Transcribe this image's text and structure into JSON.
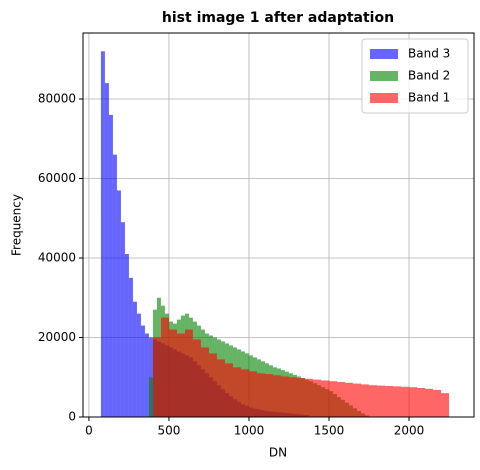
{
  "chart_data": {
    "type": "histogram",
    "title": "hist image 1 after adaptation",
    "x_label": "DN",
    "y_label": "Frequency",
    "xlim": [
      -37,
      2406
    ],
    "ylim": [
      0,
      96600
    ],
    "xticks": [
      0,
      500,
      1000,
      1500,
      2000
    ],
    "yticks": [
      0,
      20000,
      40000,
      60000,
      80000
    ],
    "grid": true,
    "legend": "upper right",
    "alpha": 0.6,
    "series": [
      {
        "name": "Band 3",
        "color": "blue",
        "bins": [
          75,
          100,
          125,
          150,
          175,
          200,
          225,
          250,
          275,
          300,
          325,
          350,
          375,
          400,
          425,
          450,
          475,
          500,
          525,
          550,
          575,
          600,
          625,
          650,
          675,
          700,
          725,
          750,
          775,
          800,
          825,
          850,
          875,
          900,
          925,
          950,
          975,
          1000,
          1025,
          1050,
          1075,
          1100,
          1125,
          1150,
          1175,
          1200,
          1225,
          1250,
          1275,
          1300,
          1325,
          1350,
          1375
        ],
        "values": [
          92000,
          84000,
          76000,
          66000,
          57000,
          49000,
          41000,
          35000,
          29000,
          26000,
          23000,
          21000,
          20000,
          19500,
          19000,
          18500,
          18000,
          17500,
          17000,
          16500,
          16000,
          15500,
          15000,
          14000,
          13000,
          12000,
          11000,
          10000,
          9000,
          8000,
          7000,
          6000,
          5200,
          4500,
          3800,
          3200,
          2800,
          2400,
          2100,
          1900,
          1700,
          1500,
          1400,
          1300,
          1200,
          1100,
          1000,
          900,
          800,
          700,
          600,
          500
        ]
      },
      {
        "name": "Band 2",
        "color": "green",
        "bins": [
          375,
          400,
          425,
          450,
          475,
          500,
          525,
          550,
          575,
          600,
          625,
          650,
          675,
          700,
          725,
          750,
          775,
          800,
          825,
          850,
          875,
          900,
          925,
          950,
          975,
          1000,
          1025,
          1050,
          1075,
          1100,
          1125,
          1150,
          1175,
          1200,
          1225,
          1250,
          1275,
          1300,
          1325,
          1350,
          1375,
          1400,
          1425,
          1450,
          1475,
          1500,
          1525,
          1550,
          1575,
          1600,
          1625,
          1650,
          1675,
          1700,
          1725,
          1750
        ],
        "values": [
          10000,
          27000,
          30000,
          28000,
          26000,
          24000,
          23500,
          24500,
          25500,
          26000,
          25000,
          24000,
          23000,
          22000,
          21000,
          20500,
          20000,
          19500,
          19000,
          18500,
          18000,
          17500,
          17000,
          16500,
          16000,
          15500,
          15000,
          14500,
          14000,
          13500,
          13000,
          12500,
          12200,
          11800,
          11400,
          11000,
          10600,
          10200,
          9800,
          9400,
          9000,
          8500,
          8000,
          7500,
          7000,
          6500,
          5800,
          5000,
          4300,
          3600,
          2900,
          2200,
          1500,
          900,
          400
        ]
      },
      {
        "name": "Band 1",
        "color": "red",
        "bins": [
          400,
          450,
          500,
          550,
          600,
          650,
          700,
          750,
          800,
          850,
          900,
          950,
          1000,
          1050,
          1100,
          1150,
          1200,
          1250,
          1300,
          1350,
          1400,
          1450,
          1500,
          1550,
          1600,
          1650,
          1700,
          1750,
          1800,
          1850,
          1900,
          1950,
          2000,
          2050,
          2100,
          2150,
          2200,
          2250
        ],
        "values": [
          20000,
          25000,
          22000,
          21000,
          22000,
          19500,
          17500,
          16000,
          14500,
          13500,
          12500,
          12000,
          11500,
          11000,
          10800,
          10500,
          10200,
          10000,
          9800,
          9600,
          9400,
          9200,
          9000,
          8800,
          8600,
          8400,
          8200,
          8000,
          7900,
          7800,
          7700,
          7600,
          7500,
          7300,
          7100,
          6800,
          6000
        ]
      }
    ]
  }
}
